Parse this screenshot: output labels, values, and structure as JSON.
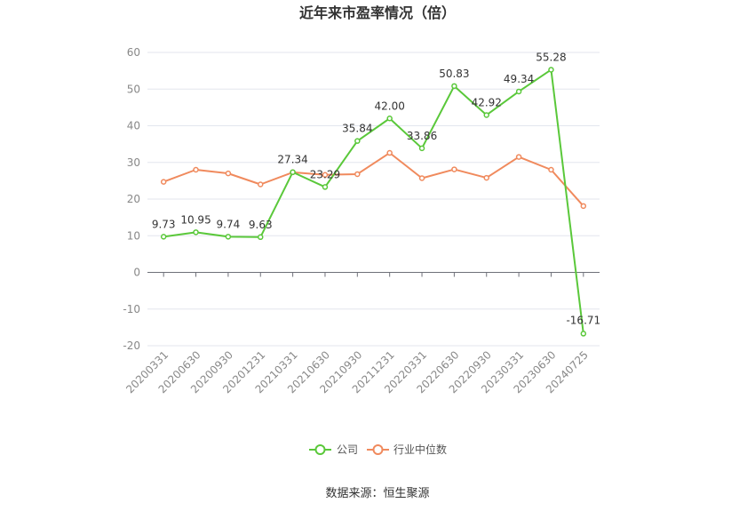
{
  "chart_data": {
    "type": "line",
    "title": "近年来市盈率情况（倍）",
    "xlabel": "",
    "ylabel": "",
    "categories": [
      "20200331",
      "20200630",
      "20200930",
      "20201231",
      "20210331",
      "20210630",
      "20210930",
      "20211231",
      "20220331",
      "20220630",
      "20220930",
      "20230331",
      "20230630",
      "20240725"
    ],
    "ylim": [
      -20,
      60
    ],
    "yticks": [
      -20,
      -10,
      0,
      10,
      20,
      30,
      40,
      50,
      60
    ],
    "grid": true,
    "legend_position": "bottom",
    "series": [
      {
        "name": "公司",
        "color": "#5ac83a",
        "values": [
          9.73,
          10.95,
          9.74,
          9.63,
          27.34,
          23.29,
          35.84,
          42.0,
          33.86,
          50.83,
          42.92,
          49.34,
          55.28,
          -16.71
        ],
        "labels": [
          "9.73",
          "10.95",
          "9.74",
          "9.63",
          "27.34",
          "23.29",
          "35.84",
          "42.00",
          "33.86",
          "50.83",
          "42.92",
          "49.34",
          "55.28",
          "-16.71"
        ]
      },
      {
        "name": "行业中位数",
        "color": "#f08a5d",
        "values": [
          24.7,
          28.0,
          27.0,
          24.0,
          27.3,
          26.6,
          26.8,
          32.6,
          25.7,
          28.1,
          25.8,
          31.5,
          28.0,
          18.1
        ]
      }
    ],
    "source": "数据来源：恒生聚源"
  }
}
